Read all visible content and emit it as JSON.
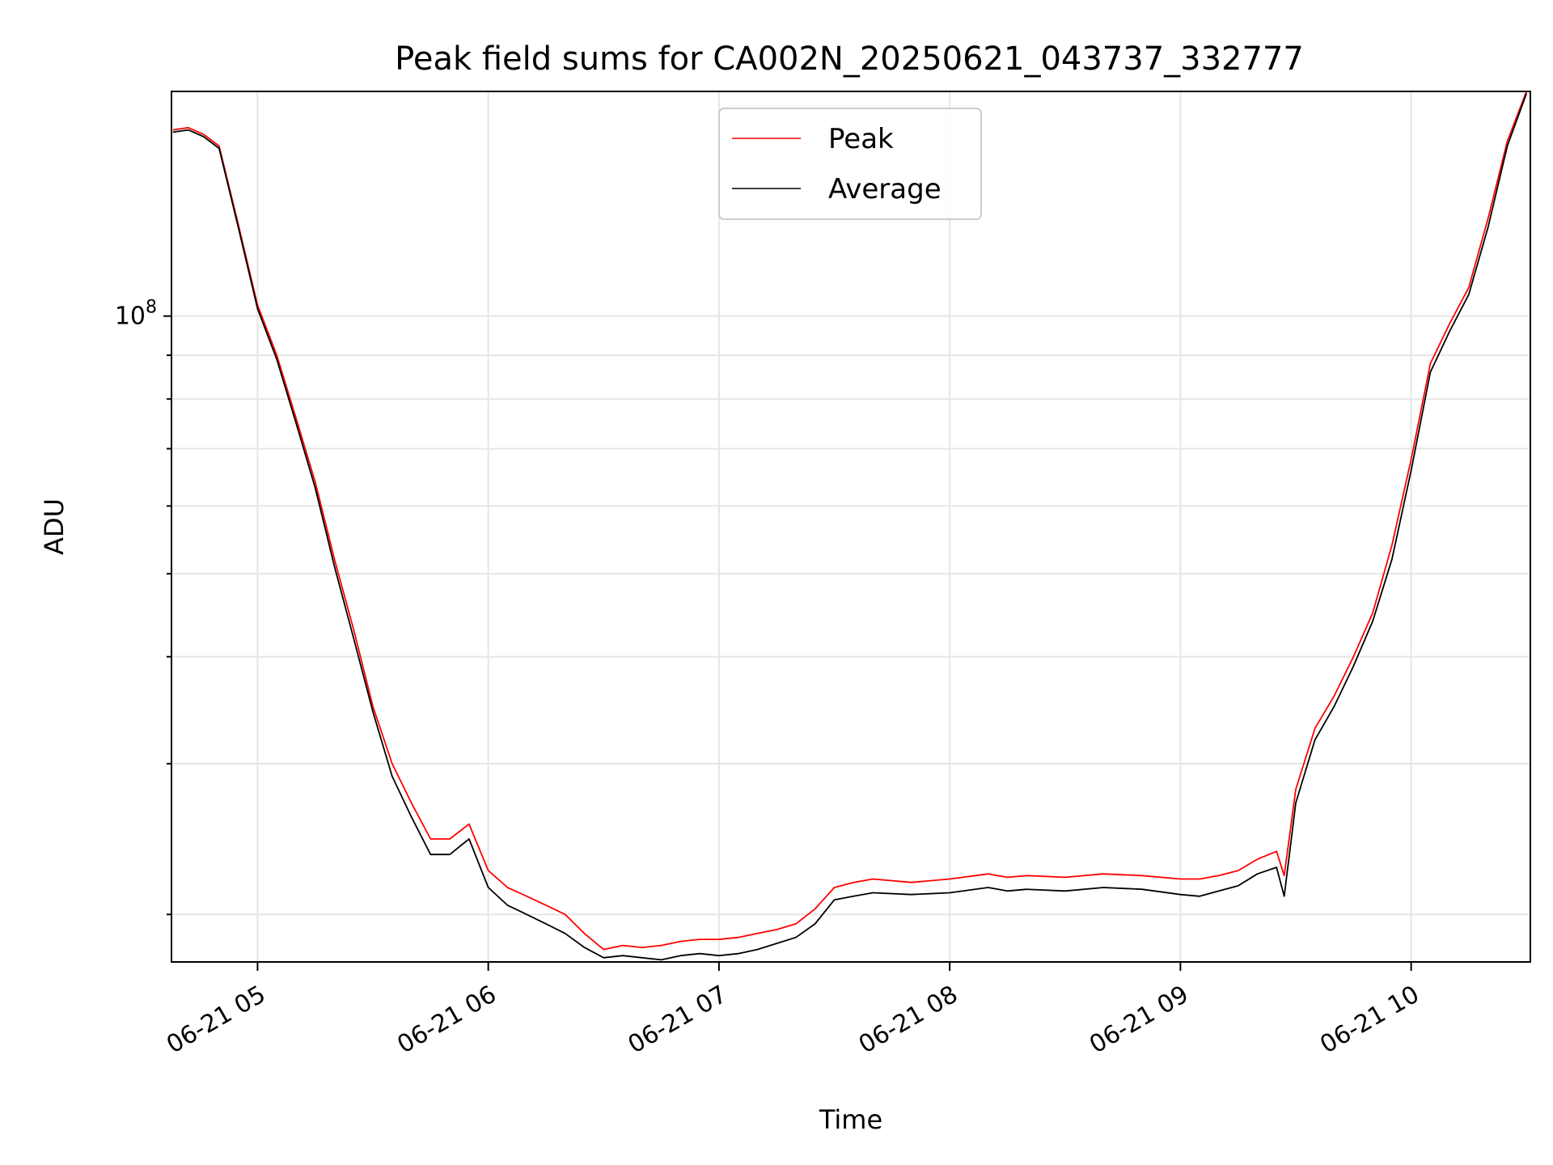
{
  "chart_data": {
    "type": "line",
    "title": "Peak field sums for CA002N_20250621_043737_332777",
    "xlabel": "Time",
    "ylabel": "ADU",
    "y_scale": "log",
    "grid": true,
    "legend_position": "top-center",
    "xlim": [
      "2025-06-21T04:37:37",
      "2025-06-21T10:31:00"
    ],
    "ylim": [
      17600000,
      183000000
    ],
    "x_ticks": [
      {
        "value": "2025-06-21T05:00",
        "label": "06-21 05"
      },
      {
        "value": "2025-06-21T06:00",
        "label": "06-21 06"
      },
      {
        "value": "2025-06-21T07:00",
        "label": "06-21 07"
      },
      {
        "value": "2025-06-21T08:00",
        "label": "06-21 08"
      },
      {
        "value": "2025-06-21T09:00",
        "label": "06-21 09"
      },
      {
        "value": "2025-06-21T10:00",
        "label": "06-21 10"
      }
    ],
    "y_ticks": [
      {
        "value": 100000000,
        "base": "10",
        "exponent": "8"
      }
    ],
    "y_minor_ticks": [
      20000000,
      30000000,
      40000000,
      50000000,
      60000000,
      70000000,
      80000000,
      90000000
    ],
    "x_times": [
      "2025-06-21T04:38",
      "2025-06-21T04:42",
      "2025-06-21T04:46",
      "2025-06-21T04:50",
      "2025-06-21T04:55",
      "2025-06-21T05:00",
      "2025-06-21T05:05",
      "2025-06-21T05:10",
      "2025-06-21T05:15",
      "2025-06-21T05:20",
      "2025-06-21T05:25",
      "2025-06-21T05:30",
      "2025-06-21T05:35",
      "2025-06-21T05:40",
      "2025-06-21T05:45",
      "2025-06-21T05:50",
      "2025-06-21T05:55",
      "2025-06-21T06:00",
      "2025-06-21T06:05",
      "2025-06-21T06:10",
      "2025-06-21T06:15",
      "2025-06-21T06:20",
      "2025-06-21T06:25",
      "2025-06-21T06:30",
      "2025-06-21T06:35",
      "2025-06-21T06:40",
      "2025-06-21T06:45",
      "2025-06-21T06:50",
      "2025-06-21T06:55",
      "2025-06-21T07:00",
      "2025-06-21T07:05",
      "2025-06-21T07:10",
      "2025-06-21T07:15",
      "2025-06-21T07:20",
      "2025-06-21T07:25",
      "2025-06-21T07:30",
      "2025-06-21T07:35",
      "2025-06-21T07:40",
      "2025-06-21T07:50",
      "2025-06-21T08:00",
      "2025-06-21T08:10",
      "2025-06-21T08:15",
      "2025-06-21T08:20",
      "2025-06-21T08:30",
      "2025-06-21T08:40",
      "2025-06-21T08:50",
      "2025-06-21T09:00",
      "2025-06-21T09:05",
      "2025-06-21T09:10",
      "2025-06-21T09:15",
      "2025-06-21T09:20",
      "2025-06-21T09:25",
      "2025-06-21T09:27",
      "2025-06-21T09:30",
      "2025-06-21T09:35",
      "2025-06-21T09:40",
      "2025-06-21T09:45",
      "2025-06-21T09:50",
      "2025-06-21T09:55",
      "2025-06-21T10:00",
      "2025-06-21T10:05",
      "2025-06-21T10:10",
      "2025-06-21T10:15",
      "2025-06-21T10:20",
      "2025-06-21T10:25",
      "2025-06-21T10:30"
    ],
    "series": [
      {
        "name": "Peak",
        "color": "#ff0000",
        "values": [
          165000000,
          166000000,
          163000000,
          158000000,
          128000000,
          103000000,
          90000000,
          76000000,
          64000000,
          52000000,
          43000000,
          35000000,
          30000000,
          27000000,
          24500000,
          24500000,
          25500000,
          22500000,
          21500000,
          21000000,
          20500000,
          20000000,
          19000000,
          18200000,
          18400000,
          18300000,
          18400000,
          18600000,
          18700000,
          18700000,
          18800000,
          19000000,
          19200000,
          19500000,
          20300000,
          21500000,
          21800000,
          22000000,
          21800000,
          22000000,
          22300000,
          22100000,
          22200000,
          22100000,
          22300000,
          22200000,
          22000000,
          22000000,
          22200000,
          22500000,
          23200000,
          23700000,
          22200000,
          28000000,
          33000000,
          36000000,
          40000000,
          45000000,
          54000000,
          68000000,
          88000000,
          98000000,
          108000000,
          130000000,
          160000000,
          183000000
        ]
      },
      {
        "name": "Average",
        "color": "#000000",
        "values": [
          164000000,
          165000000,
          162000000,
          157000000,
          127000000,
          102000000,
          89000000,
          75000000,
          63000000,
          51000000,
          42000000,
          34500000,
          29000000,
          26000000,
          23500000,
          23500000,
          24500000,
          21500000,
          20500000,
          20000000,
          19500000,
          19000000,
          18300000,
          17800000,
          17900000,
          17800000,
          17700000,
          17900000,
          18000000,
          17900000,
          18000000,
          18200000,
          18500000,
          18800000,
          19500000,
          20800000,
          21000000,
          21200000,
          21100000,
          21200000,
          21500000,
          21300000,
          21400000,
          21300000,
          21500000,
          21400000,
          21100000,
          21000000,
          21300000,
          21600000,
          22300000,
          22700000,
          21000000,
          27000000,
          32000000,
          35000000,
          39000000,
          44000000,
          52000000,
          66000000,
          86000000,
          96000000,
          106000000,
          127000000,
          158000000,
          182000000
        ]
      }
    ]
  }
}
